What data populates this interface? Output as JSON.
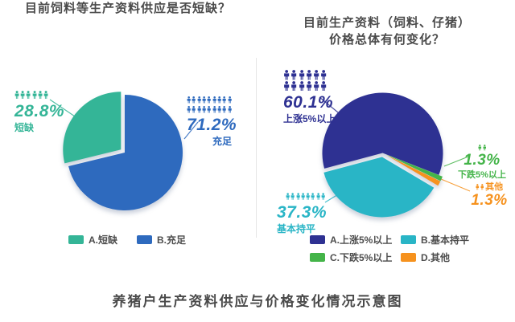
{
  "page": {
    "caption": "养猪户生产资料供应与价格变化情况示意图"
  },
  "colors": {
    "text_dark": "#4a4a4a",
    "divider": "#e5e5e5",
    "background": "#ffffff"
  },
  "chart_data": [
    {
      "type": "pie",
      "title_lines": [
        "目前饲料等生产资料供应是否短缺？"
      ],
      "legend_position": "below",
      "slices": [
        {
          "key": "A",
          "label": "A.短缺",
          "name": "短缺",
          "value_pct": 28.8,
          "pct_text": "28.8%",
          "color": "#34b597",
          "exploded": true,
          "icon_rows": [
            6
          ]
        },
        {
          "key": "B",
          "label": "B.充足",
          "name": "充足",
          "value_pct": 71.2,
          "pct_text": "71.2%",
          "color": "#2e6abe",
          "exploded": false,
          "icon_rows": [
            9,
            9
          ]
        }
      ],
      "draw": {
        "order": [
          "B",
          "A"
        ],
        "start_deg": 0
      }
    },
    {
      "type": "pie",
      "title_lines": [
        "目前生产资料（饲料、仔猪）",
        "价格总体有何变化？"
      ],
      "legend_position": "below",
      "slices": [
        {
          "key": "A",
          "label": "A.上涨5%以上",
          "name": "上涨5%以上",
          "value_pct": 60.1,
          "pct_text": "60.1%",
          "color": "#2e3192",
          "exploded": false,
          "icon_rows": [
            6,
            6
          ]
        },
        {
          "key": "B",
          "label": "B.基本持平",
          "name": "基本持平",
          "value_pct": 37.3,
          "pct_text": "37.3%",
          "color": "#29b5c6",
          "exploded": true,
          "icon_rows": [
            8
          ]
        },
        {
          "key": "C",
          "label": "C.下跌5%以上",
          "name": "下跌5%以上",
          "value_pct": 1.3,
          "pct_text": "1.3%",
          "color": "#44b449",
          "exploded": true,
          "icon_rows": [
            2
          ]
        },
        {
          "key": "D",
          "label": "D.其他",
          "name": "其他",
          "value_pct": 1.3,
          "pct_text": "1.3%",
          "color": "#f6921e",
          "exploded": true,
          "icon_rows": [
            2
          ]
        }
      ],
      "draw": {
        "order": [
          "A",
          "C",
          "D",
          "B"
        ],
        "start_deg": 255
      }
    }
  ]
}
